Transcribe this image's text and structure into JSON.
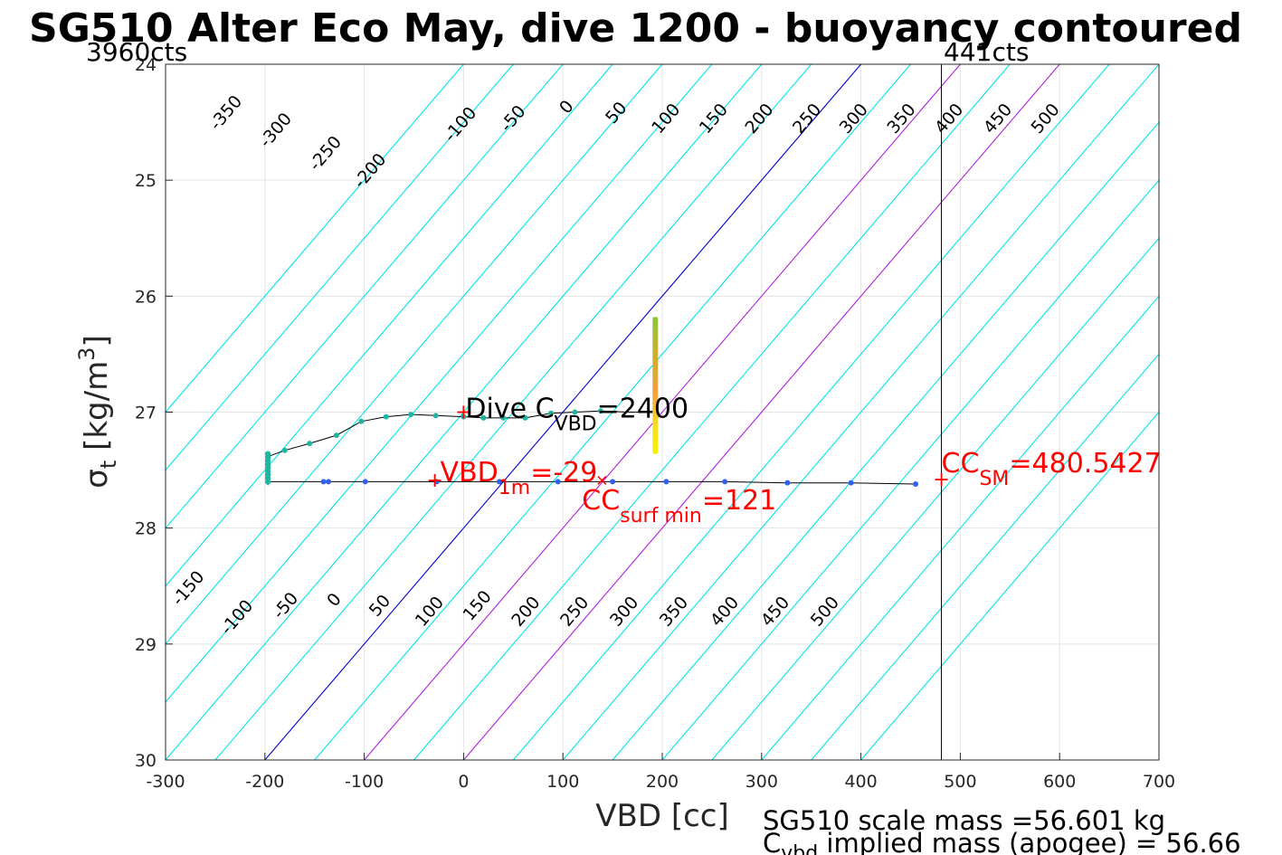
{
  "chart_data": {
    "type": "line",
    "title": "SG510 Alter Eco May, dive 1200 - buoyancy contoured",
    "xlabel": "VBD [cc]",
    "ylabel": "σt [kg/m3]",
    "xlim": [
      -300,
      700
    ],
    "ylim": [
      24,
      30
    ],
    "y_reversed": true,
    "grid": true,
    "x_ticks": [
      "-300",
      "-200",
      "-100",
      "0",
      "100",
      "200",
      "300",
      "400",
      "500",
      "600",
      "700"
    ],
    "y_ticks": [
      "24",
      "25",
      "26",
      "27",
      "28",
      "29",
      "30"
    ],
    "contour_slope_cc_per_sigma": 100,
    "contour_levels": [
      -400,
      -350,
      -300,
      -250,
      -200,
      -150,
      -100,
      -50,
      0,
      50,
      100,
      150,
      200,
      250,
      300,
      350,
      400,
      450,
      500,
      550,
      600
    ],
    "contour_highlight_blue": [
      0
    ],
    "contour_highlight_purple": [
      100,
      200
    ],
    "top_labels": [
      {
        "text": "-350",
        "x": -235,
        "y": 24.45
      },
      {
        "text": "-300",
        "x": -185,
        "y": 24.6
      },
      {
        "text": "-250",
        "x": -135,
        "y": 24.8
      },
      {
        "text": "-200",
        "x": -90,
        "y": 24.95
      },
      {
        "text": "-100",
        "x": 1,
        "y": 24.55
      },
      {
        "text": "-50",
        "x": 54,
        "y": 24.5
      },
      {
        "text": "0",
        "x": 108,
        "y": 24.4
      },
      {
        "text": "50",
        "x": 158,
        "y": 24.45
      },
      {
        "text": "100",
        "x": 208,
        "y": 24.5
      },
      {
        "text": "150",
        "x": 256,
        "y": 24.5
      },
      {
        "text": "200",
        "x": 302,
        "y": 24.5
      },
      {
        "text": "250",
        "x": 350,
        "y": 24.5
      },
      {
        "text": "300",
        "x": 397,
        "y": 24.5
      },
      {
        "text": "350",
        "x": 445,
        "y": 24.5
      },
      {
        "text": "400",
        "x": 493,
        "y": 24.5
      },
      {
        "text": "450",
        "x": 542,
        "y": 24.5
      },
      {
        "text": "500",
        "x": 590,
        "y": 24.5
      }
    ],
    "bottom_labels": [
      {
        "text": "-150",
        "x": -273,
        "y": 28.55
      },
      {
        "text": "-100",
        "x": -224,
        "y": 28.8
      },
      {
        "text": "-50",
        "x": -175,
        "y": 28.7
      },
      {
        "text": "0",
        "x": -126,
        "y": 28.65
      },
      {
        "text": "50",
        "x": -80,
        "y": 28.7
      },
      {
        "text": "100",
        "x": -30,
        "y": 28.75
      },
      {
        "text": "150",
        "x": 18,
        "y": 28.7
      },
      {
        "text": "200",
        "x": 67,
        "y": 28.75
      },
      {
        "text": "250",
        "x": 116,
        "y": 28.75
      },
      {
        "text": "300",
        "x": 166,
        "y": 28.75
      },
      {
        "text": "350",
        "x": 216,
        "y": 28.75
      },
      {
        "text": "400",
        "x": 267,
        "y": 28.75
      },
      {
        "text": "450",
        "x": 318,
        "y": 28.75
      },
      {
        "text": "500",
        "x": 368,
        "y": 28.75
      }
    ],
    "vertical_line_x": 481,
    "counts_left": "3960cts",
    "counts_right": "441cts",
    "dive_path": [
      [
        -197,
        27.45
      ],
      [
        -196,
        27.38
      ],
      [
        -180,
        27.33
      ],
      [
        -155,
        27.27
      ],
      [
        -128,
        27.2
      ],
      [
        -103,
        27.08
      ],
      [
        -78,
        27.04
      ],
      [
        -53,
        27.02
      ],
      [
        -28,
        27.03
      ],
      [
        0,
        27.04
      ],
      [
        20,
        27.05
      ],
      [
        40,
        27.05
      ],
      [
        62,
        27.05
      ],
      [
        88,
        27.01
      ],
      [
        112,
        27.0
      ],
      [
        138,
        26.99
      ],
      [
        165,
        27.0
      ],
      [
        190,
        27.0
      ]
    ],
    "dive_points": [
      [
        -180,
        27.33
      ],
      [
        -155,
        27.27
      ],
      [
        -128,
        27.2
      ],
      [
        -103,
        27.08
      ],
      [
        -78,
        27.04
      ],
      [
        -53,
        27.02
      ],
      [
        -28,
        27.03
      ],
      [
        0,
        27.04
      ],
      [
        20,
        27.05
      ],
      [
        40,
        27.05
      ],
      [
        62,
        27.05
      ],
      [
        88,
        27.01
      ],
      [
        112,
        27.0
      ],
      [
        138,
        26.99
      ]
    ],
    "climb_path": [
      [
        -196,
        27.6
      ],
      [
        -141,
        27.6
      ],
      [
        -136,
        27.6
      ],
      [
        -99,
        27.6
      ],
      [
        -27,
        27.6
      ],
      [
        36,
        27.6
      ],
      [
        95,
        27.6
      ],
      [
        150,
        27.6
      ],
      [
        204,
        27.6
      ],
      [
        263,
        27.6
      ],
      [
        326,
        27.61
      ],
      [
        390,
        27.61
      ],
      [
        455,
        27.62
      ]
    ],
    "climb_points": [
      [
        -141,
        27.6
      ],
      [
        -136,
        27.6
      ],
      [
        -99,
        27.6
      ],
      [
        -27,
        27.6
      ],
      [
        36,
        27.6
      ],
      [
        95,
        27.6
      ],
      [
        150,
        27.6
      ],
      [
        204,
        27.6
      ],
      [
        263,
        27.6
      ],
      [
        326,
        27.61
      ],
      [
        390,
        27.61
      ],
      [
        455,
        27.62
      ]
    ],
    "bottom_column": {
      "x": -197,
      "y_from": 27.36,
      "y_to": 27.63
    },
    "yellow_column": {
      "x": 193,
      "y_from": 26.18,
      "y_to": 27.36
    },
    "annotations": {
      "dive_cvbd": {
        "main": "Dive C",
        "sub": "VBD",
        "tail": "=2400",
        "x": 0,
        "y": 27.0
      },
      "vbd_1m": {
        "main": "VBD",
        "sub": "1m",
        "tail": "=-29",
        "x": -29,
        "y": 27.59
      },
      "cc_surf_min": {
        "main": "CC",
        "sub": "surf min",
        "tail": "=121",
        "x": 121,
        "y": 27.72
      },
      "cc_sm": {
        "main": "CC",
        "sub": "SM",
        "tail": "=480.5427",
        "x": 481,
        "y": 27.58
      }
    },
    "mass_text_1": "SG510 scale mass =56.601 kg",
    "mass_text_2_main": "C",
    "mass_text_2_sub": "vbd",
    "mass_text_2_tail": " implied mass (apogee) = 56.66",
    "colors": {
      "contour": "#00e5e5",
      "contour_zero": "#0000cc",
      "contour_purple": "#b020e0",
      "grid": "#e3e3e3",
      "dive_point": "#20b5a0",
      "climb_point": "#3060f0",
      "marker": "#ff0000"
    }
  }
}
